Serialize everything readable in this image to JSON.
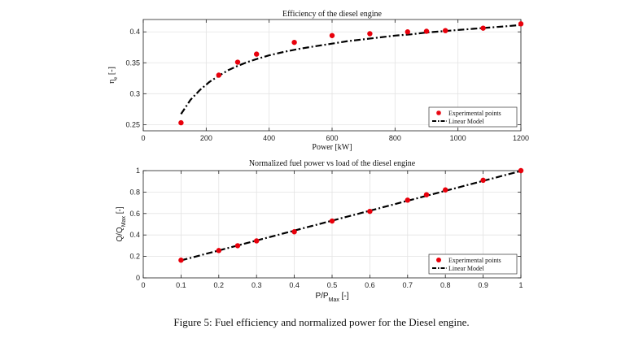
{
  "caption": "Figure 5: Fuel efficiency and normalized power for the Diesel engine.",
  "colors": {
    "points": "#e8000b",
    "model": "#000000",
    "grid": "#e3e3e3",
    "axes": "#222222"
  },
  "chart_data": [
    {
      "type": "scatter",
      "title": "Efficiency of the diesel engine",
      "xlabel": "Power [kW]",
      "ylabel": "η",
      "ylabel_sub": "e",
      "ylabel_unit": "[-]",
      "xlim": [
        0,
        1200
      ],
      "ylim": [
        0.24,
        0.42
      ],
      "xticks": [
        0,
        200,
        400,
        600,
        800,
        1000,
        1200
      ],
      "yticks": [
        0.25,
        0.3,
        0.35,
        0.4
      ],
      "ytick_labels": [
        "0.25",
        "0.3",
        "0.35",
        "0.4"
      ],
      "grid": true,
      "legend_position": "bottom-right",
      "legend_marker": "star",
      "series": [
        {
          "name": "Experimental points",
          "kind": "points",
          "x": [
            120,
            240,
            300,
            360,
            480,
            600,
            720,
            840,
            900,
            960,
            1080,
            1200
          ],
          "y": [
            0.253,
            0.33,
            0.351,
            0.364,
            0.383,
            0.394,
            0.397,
            0.4,
            0.401,
            0.402,
            0.406,
            0.413
          ]
        },
        {
          "name": "Linear Model",
          "kind": "line",
          "x": [
            120,
            150,
            180,
            210,
            240,
            270,
            300,
            330,
            360,
            400,
            450,
            500,
            550,
            600,
            650,
            700,
            750,
            800,
            850,
            900,
            950,
            1000,
            1050,
            1100,
            1150,
            1200
          ],
          "y": [
            0.267,
            0.29,
            0.306,
            0.319,
            0.329,
            0.338,
            0.345,
            0.351,
            0.356,
            0.362,
            0.368,
            0.373,
            0.377,
            0.381,
            0.385,
            0.388,
            0.391,
            0.394,
            0.396,
            0.399,
            0.401,
            0.403,
            0.405,
            0.407,
            0.409,
            0.411
          ]
        }
      ]
    },
    {
      "type": "scatter",
      "title": "Normalized fuel power vs load of the diesel engine",
      "xlabel": "P/P",
      "xlabel_sub": "Max",
      "xlabel_unit": "[-]",
      "ylabel": "Q/Q",
      "ylabel_sub": "Max",
      "ylabel_unit": "[-]",
      "xlim": [
        0,
        1
      ],
      "ylim": [
        0,
        1
      ],
      "xticks": [
        0,
        0.1,
        0.2,
        0.3,
        0.4,
        0.5,
        0.6,
        0.7,
        0.8,
        0.9,
        1
      ],
      "xtick_labels": [
        "0",
        "0.1",
        "0.2",
        "0.3",
        "0.4",
        "0.5",
        "0.6",
        "0.7",
        "0.8",
        "0.9",
        "1"
      ],
      "yticks": [
        0,
        0.2,
        0.4,
        0.6,
        0.8,
        1
      ],
      "ytick_labels": [
        "0",
        "0.2",
        "0.4",
        "0.6",
        "0.8",
        "1"
      ],
      "grid": true,
      "legend_position": "bottom-right",
      "legend_marker": "dot",
      "series": [
        {
          "name": "Experimental points",
          "kind": "points",
          "x": [
            0.1,
            0.2,
            0.25,
            0.3,
            0.4,
            0.5,
            0.6,
            0.7,
            0.75,
            0.8,
            0.9,
            1.0
          ],
          "y": [
            0.165,
            0.255,
            0.3,
            0.345,
            0.43,
            0.53,
            0.62,
            0.725,
            0.775,
            0.82,
            0.91,
            1.0
          ]
        },
        {
          "name": "Linear Model",
          "kind": "line",
          "x": [
            0.1,
            1.0
          ],
          "y": [
            0.163,
            0.997
          ]
        }
      ]
    }
  ]
}
